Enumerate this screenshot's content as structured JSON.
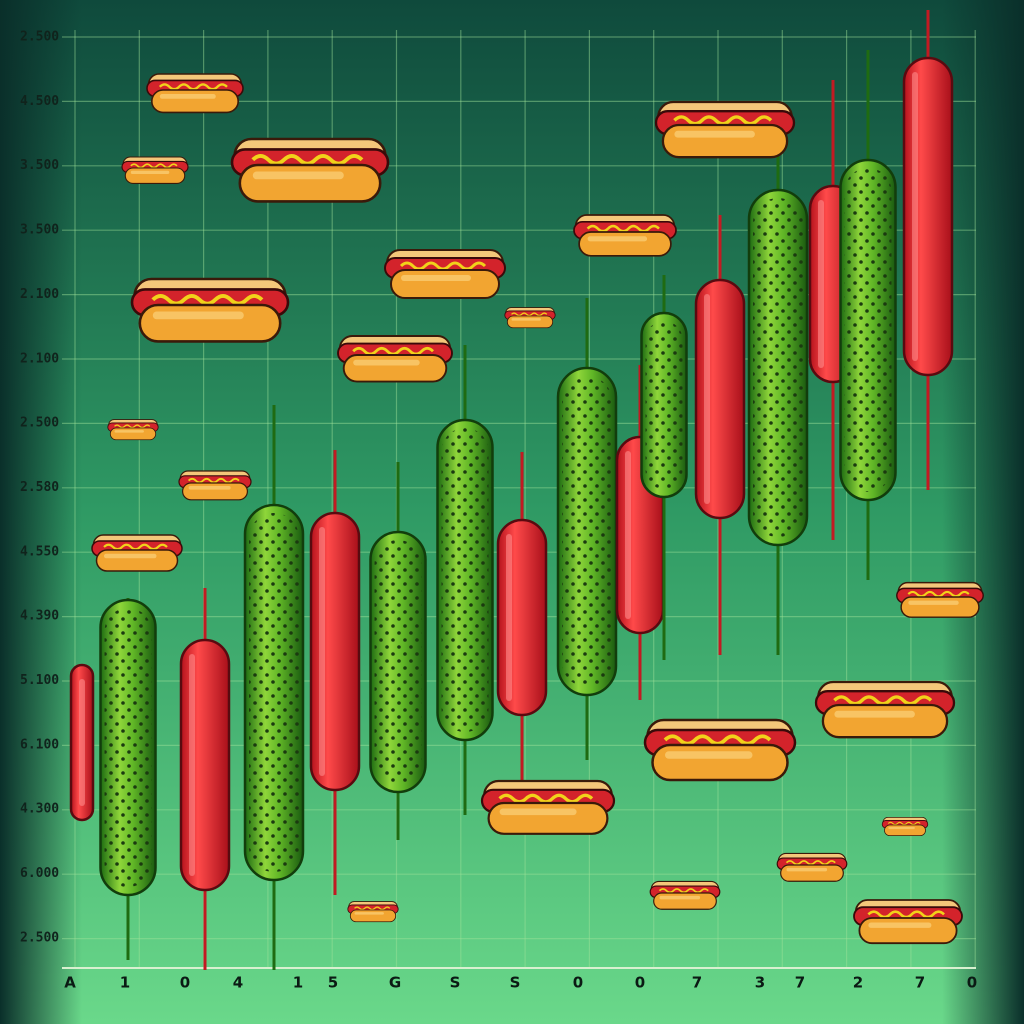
{
  "y_axis_labels": [
    "2.500",
    "4.500",
    "3.500",
    "3.500",
    "2.100",
    "2.100",
    "2.500",
    "2.580",
    "4.550",
    "4.390",
    "5.100",
    "6.100",
    "4.300",
    "6.000",
    "2.500"
  ],
  "x_axis_labels": [
    "A",
    "1",
    "0",
    "4",
    "1",
    "5",
    "G",
    "S",
    "S",
    "0",
    "0",
    "7",
    "3",
    "7",
    "2",
    "7",
    "0"
  ]
}
